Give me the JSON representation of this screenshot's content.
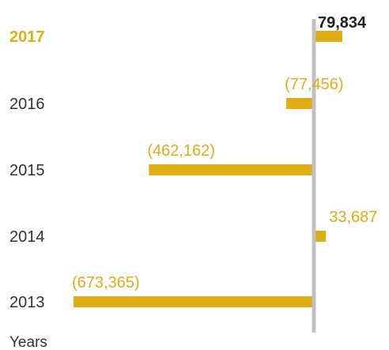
{
  "chart_data": {
    "type": "bar",
    "orientation": "horizontal",
    "categories": [
      "2017",
      "2016",
      "2015",
      "2014",
      "2013"
    ],
    "values": [
      79834,
      -77456,
      -462162,
      33687,
      -673365
    ],
    "value_labels": [
      "79,834",
      "(77,456)",
      "(462,162)",
      "33,687",
      "(673,365)"
    ],
    "highlight_category": "2017",
    "ylabel": "Years",
    "grid": false,
    "legend": "none",
    "colors": {
      "bar": "#e0ad12",
      "axis": "#c0c0c4",
      "highlight_text": "#e0ad12",
      "highlight_value": "#222222",
      "text": "#333333"
    }
  }
}
